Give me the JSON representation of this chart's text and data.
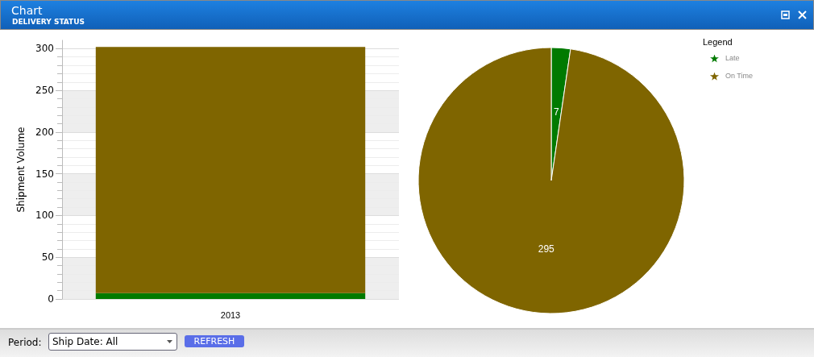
{
  "chart_data": [
    {
      "type": "bar",
      "title": "Chart",
      "subtitle": "DELIVERY STATUS",
      "ylabel": "Shipment Volume",
      "categories": [
        "2013"
      ],
      "stacked": true,
      "series": [
        {
          "color": "#007a00",
          "values": [
            7
          ]
        },
        {
          "color": "#7f6500",
          "values": [
            295
          ]
        }
      ],
      "ylim": [
        0,
        310
      ],
      "yticks": [
        0,
        50,
        100,
        150,
        200,
        250,
        300
      ],
      "grid": true,
      "annotations": [
        "Period:",
        "Ship Date: All",
        "REFRESH"
      ]
    },
    {
      "type": "pie",
      "legend_title": "Legend",
      "categories": [
        "Late",
        "On Time"
      ],
      "values": [
        7,
        295
      ],
      "colors": [
        "#007a00",
        "#7f6500"
      ],
      "data_labels": true,
      "legend": "top right"
    }
  ]
}
